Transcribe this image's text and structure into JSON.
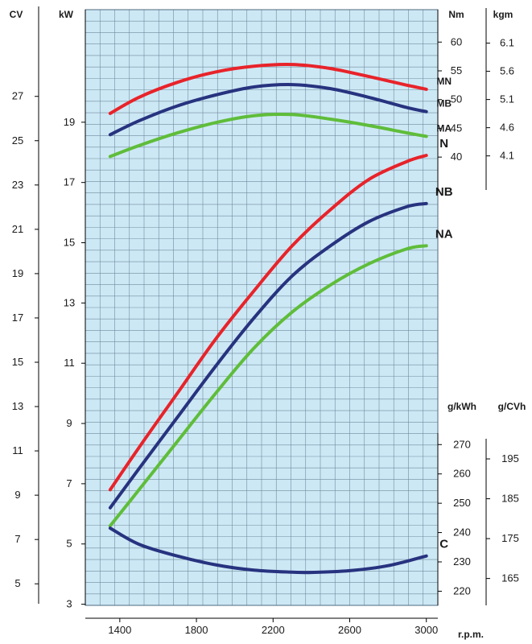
{
  "chart_data": {
    "type": "line",
    "xlabel": "r.p.m.",
    "x_ticks": [
      1400,
      1800,
      2200,
      2600,
      3000
    ],
    "xlim": [
      1220,
      3060
    ],
    "units": {
      "cv": "CV",
      "kw": "kW",
      "nm": "Nm",
      "kgm": "kgm",
      "gkwh": "g/kWh",
      "gcvh": "g/CVh"
    },
    "axes": {
      "kw": {
        "ticks": [
          3,
          5,
          7,
          9,
          11,
          13,
          15,
          17,
          19
        ],
        "range": [
          2,
          21
        ]
      },
      "cv": {
        "ticks": [
          5,
          7,
          9,
          11,
          13,
          15,
          17,
          19,
          21,
          23,
          25,
          27
        ]
      },
      "nm": {
        "ticks": [
          40,
          45,
          50,
          55,
          60
        ],
        "range": [
          34,
          62
        ]
      },
      "kgm": {
        "ticks": [
          "4.1",
          "4.6",
          "5.1",
          "5.6",
          "6.1"
        ]
      },
      "gkwh": {
        "ticks": [
          220,
          230,
          240,
          250,
          260,
          270
        ],
        "range": [
          216,
          272
        ]
      },
      "gcvh": {
        "ticks": [
          165,
          175,
          185,
          195
        ]
      }
    },
    "series": [
      {
        "name": "MN",
        "axis": "nm",
        "color": "#e8232a",
        "x": [
          1350,
          1500,
          1700,
          1900,
          2100,
          2300,
          2500,
          2700,
          2900,
          3000
        ],
        "y": [
          47.6,
          50.4,
          53.0,
          54.8,
          55.8,
          56.1,
          55.4,
          54.0,
          52.5,
          51.8
        ]
      },
      {
        "name": "MB",
        "axis": "nm",
        "color": "#27337f",
        "x": [
          1350,
          1500,
          1700,
          1900,
          2100,
          2300,
          2500,
          2700,
          2900,
          3000
        ],
        "y": [
          43.9,
          46.3,
          48.9,
          50.8,
          52.2,
          52.6,
          51.9,
          50.4,
          48.6,
          47.9
        ]
      },
      {
        "name": "MA",
        "axis": "nm",
        "color": "#5fbd3a",
        "x": [
          1350,
          1500,
          1700,
          1900,
          2100,
          2300,
          2500,
          2700,
          2900,
          3000
        ],
        "y": [
          40.1,
          42.0,
          44.2,
          46.0,
          47.2,
          47.4,
          46.6,
          45.5,
          44.2,
          43.6
        ]
      },
      {
        "name": "N",
        "axis": "kw",
        "color": "#e8232a",
        "x": [
          1350,
          1500,
          1700,
          1900,
          2100,
          2300,
          2500,
          2700,
          2900,
          3000
        ],
        "y": [
          6.8,
          8.2,
          10.0,
          11.8,
          13.4,
          14.9,
          16.1,
          17.1,
          17.7,
          17.9
        ]
      },
      {
        "name": "NB",
        "axis": "kw",
        "color": "#27337f",
        "x": [
          1350,
          1500,
          1700,
          1900,
          2100,
          2300,
          2500,
          2700,
          2900,
          3000
        ],
        "y": [
          6.2,
          7.5,
          9.2,
          10.9,
          12.5,
          13.9,
          14.9,
          15.7,
          16.2,
          16.3
        ]
      },
      {
        "name": "NA",
        "axis": "kw",
        "color": "#5fbd3a",
        "x": [
          1350,
          1500,
          1700,
          1900,
          2100,
          2300,
          2500,
          2700,
          2900,
          3000
        ],
        "y": [
          5.6,
          6.8,
          8.4,
          10.0,
          11.5,
          12.7,
          13.6,
          14.3,
          14.8,
          14.9
        ]
      },
      {
        "name": "C",
        "axis": "gkwh",
        "color": "#27337f",
        "x": [
          1350,
          1500,
          1700,
          1900,
          2100,
          2300,
          2400,
          2600,
          2800,
          3000
        ],
        "y": [
          241.5,
          236.0,
          232.0,
          229.0,
          227.2,
          226.5,
          226.4,
          227.0,
          228.7,
          232.0
        ]
      }
    ]
  }
}
